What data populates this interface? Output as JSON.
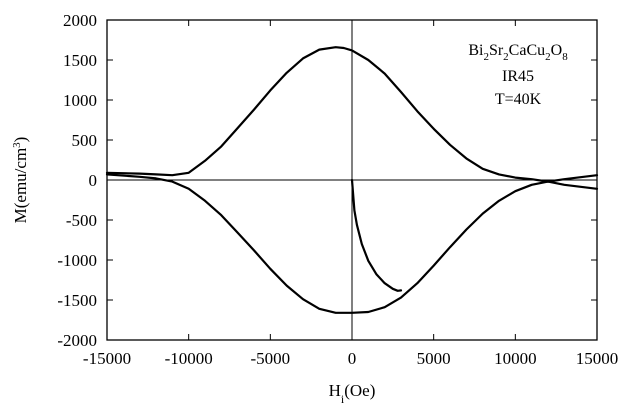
{
  "chart_data": {
    "type": "line",
    "xlabel": {
      "main": "H",
      "sub": "i",
      "tail": "(Oe)"
    },
    "ylabel": {
      "main": "M(emu/cm",
      "sup": "3",
      "tail": ")"
    },
    "xlim": [
      -15000,
      15000
    ],
    "ylim": [
      -2000,
      2000
    ],
    "xticks": [
      -15000,
      -10000,
      -5000,
      0,
      5000,
      10000,
      15000
    ],
    "yticks": [
      -2000,
      -1500,
      -1000,
      -500,
      0,
      500,
      1000,
      1500,
      2000
    ],
    "xtick_labels": [
      "-15000",
      "-10000",
      "-5000",
      "0",
      "5000",
      "10000",
      "15000"
    ],
    "ytick_labels": [
      "-2000",
      "-1500",
      "-1000",
      "-500",
      "0",
      "500",
      "1000",
      "1500",
      "2000"
    ],
    "zero_lines": {
      "horizontal": 0,
      "vertical": 0
    },
    "grid": false,
    "annotations": {
      "formula": [
        {
          "t": "Bi",
          "sub": false
        },
        {
          "t": "2",
          "sub": true
        },
        {
          "t": "Sr",
          "sub": false
        },
        {
          "t": "2",
          "sub": true
        },
        {
          "t": "CaCu",
          "sub": false
        },
        {
          "t": "2",
          "sub": true
        },
        {
          "t": "O",
          "sub": false
        },
        {
          "t": "8",
          "sub": true
        }
      ],
      "sample": "IR45",
      "temperature": "T=40K",
      "placement": "top-right"
    },
    "series": [
      {
        "role": "upper-branch",
        "x": [
          -15000,
          -13000,
          -12000,
          -11000,
          -10000,
          -9000,
          -8000,
          -7000,
          -6000,
          -5000,
          -4000,
          -3000,
          -2000,
          -1000,
          -500,
          0,
          1000,
          2000,
          3000,
          4000,
          5000,
          6000,
          7000,
          8000,
          9000,
          10000,
          11000,
          12000,
          13000,
          15000
        ],
        "y": [
          90,
          80,
          70,
          60,
          90,
          240,
          420,
          650,
          880,
          1120,
          1340,
          1520,
          1630,
          1660,
          1650,
          1620,
          1500,
          1330,
          1100,
          860,
          640,
          440,
          270,
          140,
          70,
          30,
          10,
          -20,
          -60,
          -110
        ]
      },
      {
        "role": "lower-branch",
        "x": [
          -15000,
          -13000,
          -12000,
          -11000,
          -10000,
          -9000,
          -8000,
          -7000,
          -6000,
          -5000,
          -4000,
          -3000,
          -2000,
          -1000,
          0,
          1000,
          2000,
          3000,
          4000,
          5000,
          6000,
          7000,
          8000,
          9000,
          10000,
          11000,
          12000,
          13000,
          15000
        ],
        "y": [
          70,
          40,
          20,
          -20,
          -110,
          -260,
          -440,
          -660,
          -880,
          -1110,
          -1320,
          -1490,
          -1610,
          -1660,
          -1660,
          -1650,
          -1590,
          -1470,
          -1290,
          -1070,
          -840,
          -620,
          -420,
          -260,
          -140,
          -60,
          -20,
          10,
          60
        ]
      },
      {
        "role": "virgin-curve",
        "x": [
          0,
          150,
          300,
          600,
          1000,
          1500,
          2000,
          2500,
          2800,
          3000
        ],
        "y": [
          0,
          -380,
          -560,
          -800,
          -1010,
          -1180,
          -1290,
          -1360,
          -1385,
          -1380
        ]
      }
    ]
  }
}
